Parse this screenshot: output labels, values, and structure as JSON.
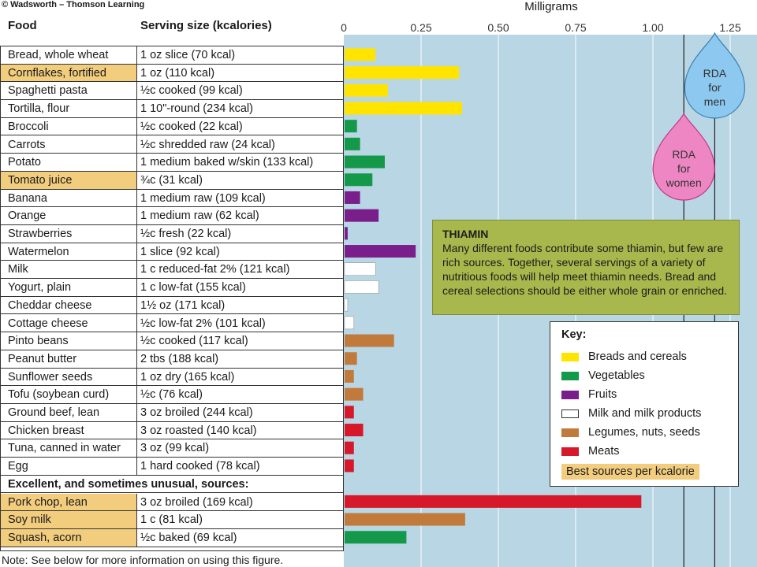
{
  "copyright": "© Wadsworth – Thomson Learning",
  "headers": {
    "food": "Food",
    "serving": "Serving size (kcalories)"
  },
  "note": "Note: See below for more information on using this figure.",
  "section_header": "Excellent, and sometimes unusual, sources:",
  "callout": {
    "title": "THIAMIN",
    "text": "Many different foods contribute some thiamin, but few are rich sources. Together, several servings of a variety of nutritious foods will help meet thiamin needs. Bread and cereal selections should be either whole grain or enriched."
  },
  "rda": {
    "men_label": "RDA for men",
    "women_label": "RDA for women",
    "men_value": 1.2,
    "women_value": 1.1
  },
  "key": {
    "title": "Key:",
    "items": [
      {
        "label": "Breads and cereals",
        "color": "#ffe400"
      },
      {
        "label": "Vegetables",
        "color": "#14984a"
      },
      {
        "label": "Fruits",
        "color": "#7a1e8c"
      },
      {
        "label": "Milk and milk products",
        "color": "#ffffff"
      },
      {
        "label": "Legumes, nuts, seeds",
        "color": "#c27a3c"
      },
      {
        "label": "Meats",
        "color": "#d7182a"
      }
    ],
    "best_label": "Best sources per kcalorie"
  },
  "chart_data": {
    "type": "bar",
    "title": "",
    "xlabel": "Milligrams",
    "ylabel": "",
    "xlim": [
      0,
      1.3
    ],
    "ticks": [
      0,
      0.25,
      0.5,
      0.75,
      1.0,
      1.25
    ],
    "tick_labels": [
      "0",
      "0.25",
      "0.50",
      "0.75",
      "1.00",
      "1.25"
    ],
    "series": [
      {
        "food": "Bread, whole wheat",
        "serving": "1 oz slice (70 kcal)",
        "value": 0.1,
        "group": "Breads and cereals",
        "best": false
      },
      {
        "food": "Cornflakes, fortified",
        "serving": "1 oz (110 kcal)",
        "value": 0.37,
        "group": "Breads and cereals",
        "best": true
      },
      {
        "food": "Spaghetti pasta",
        "serving": "½c cooked (99 kcal)",
        "value": 0.14,
        "group": "Breads and cereals",
        "best": false
      },
      {
        "food": "Tortilla, flour",
        "serving": "1 10\"-round (234 kcal)",
        "value": 0.38,
        "group": "Breads and cereals",
        "best": false
      },
      {
        "food": "Broccoli",
        "serving": "½c cooked (22 kcal)",
        "value": 0.04,
        "group": "Vegetables",
        "best": false
      },
      {
        "food": "Carrots",
        "serving": "½c shredded raw (24 kcal)",
        "value": 0.05,
        "group": "Vegetables",
        "best": false
      },
      {
        "food": "Potato",
        "serving": "1 medium baked w/skin (133 kcal)",
        "value": 0.13,
        "group": "Vegetables",
        "best": false
      },
      {
        "food": "Tomato juice",
        "serving": "¾c (31 kcal)",
        "value": 0.09,
        "group": "Vegetables",
        "best": true
      },
      {
        "food": "Banana",
        "serving": "1 medium raw (109 kcal)",
        "value": 0.05,
        "group": "Fruits",
        "best": false
      },
      {
        "food": "Orange",
        "serving": "1 medium raw (62 kcal)",
        "value": 0.11,
        "group": "Fruits",
        "best": false
      },
      {
        "food": "Strawberries",
        "serving": "½c fresh (22 kcal)",
        "value": 0.01,
        "group": "Fruits",
        "best": false
      },
      {
        "food": "Watermelon",
        "serving": "1 slice (92 kcal)",
        "value": 0.23,
        "group": "Fruits",
        "best": false
      },
      {
        "food": "Milk",
        "serving": "1 c reduced-fat 2% (121 kcal)",
        "value": 0.1,
        "group": "Milk and milk products",
        "best": false
      },
      {
        "food": "Yogurt, plain",
        "serving": "1 c low-fat (155 kcal)",
        "value": 0.11,
        "group": "Milk and milk products",
        "best": false
      },
      {
        "food": "Cheddar cheese",
        "serving": "1½ oz (171 kcal)",
        "value": 0.01,
        "group": "Milk and milk products",
        "best": false
      },
      {
        "food": "Cottage cheese",
        "serving": "½c low-fat 2% (101 kcal)",
        "value": 0.03,
        "group": "Milk and milk products",
        "best": false
      },
      {
        "food": "Pinto beans",
        "serving": "½c cooked (117 kcal)",
        "value": 0.16,
        "group": "Legumes, nuts, seeds",
        "best": false
      },
      {
        "food": "Peanut butter",
        "serving": "2 tbs (188 kcal)",
        "value": 0.04,
        "group": "Legumes, nuts, seeds",
        "best": false
      },
      {
        "food": "Sunflower seeds",
        "serving": "1 oz dry (165 kcal)",
        "value": 0.03,
        "group": "Legumes, nuts, seeds",
        "best": false
      },
      {
        "food": "Tofu (soybean curd)",
        "serving": "½c (76 kcal)",
        "value": 0.06,
        "group": "Legumes, nuts, seeds",
        "best": false
      },
      {
        "food": "Ground beef, lean",
        "serving": "3 oz broiled (244 kcal)",
        "value": 0.03,
        "group": "Meats",
        "best": false
      },
      {
        "food": "Chicken breast",
        "serving": "3 oz roasted (140 kcal)",
        "value": 0.06,
        "group": "Meats",
        "best": false
      },
      {
        "food": "Tuna, canned in water",
        "serving": "3 oz (99 kcal)",
        "value": 0.03,
        "group": "Meats",
        "best": false
      },
      {
        "food": "Egg",
        "serving": "1 hard cooked (78 kcal)",
        "value": 0.03,
        "group": "Meats",
        "best": false
      },
      {
        "food": "Pork chop, lean",
        "serving": "3 oz broiled (169 kcal)",
        "value": 0.96,
        "group": "Meats",
        "best": true
      },
      {
        "food": "Soy milk",
        "serving": "1 c (81 kcal)",
        "value": 0.39,
        "group": "Legumes, nuts, seeds",
        "best": true
      },
      {
        "food": "Squash, acorn",
        "serving": "½c baked (69 kcal)",
        "value": 0.2,
        "group": "Vegetables",
        "best": true
      }
    ]
  }
}
